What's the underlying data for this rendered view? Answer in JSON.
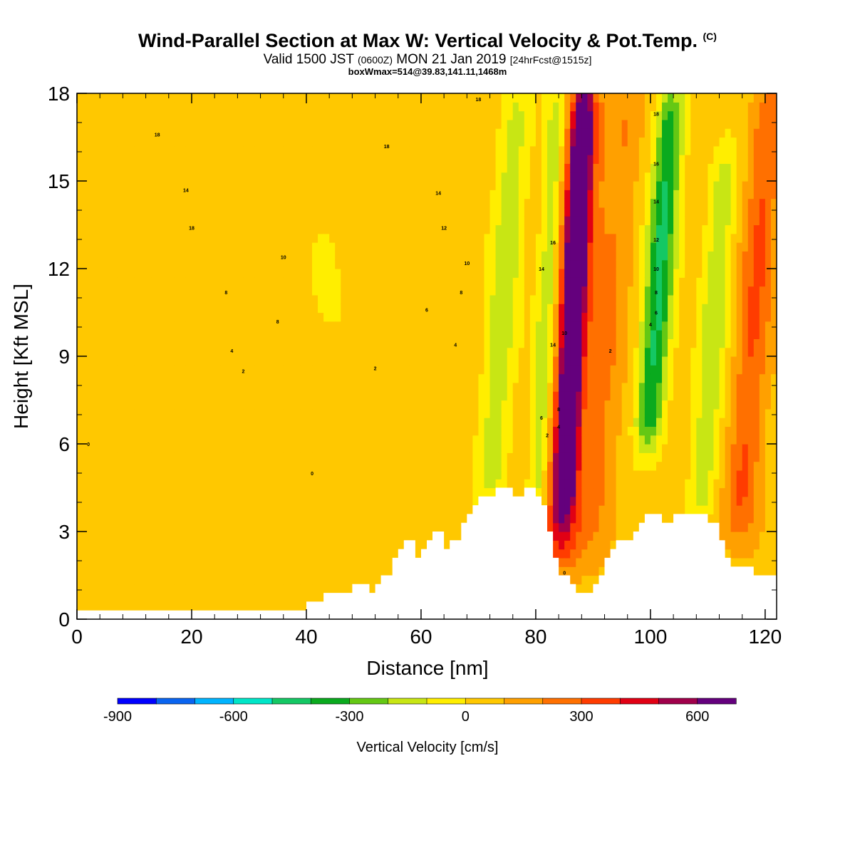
{
  "header": {
    "title": "Wind-Parallel Section at Max W: Vertical Velocity & Pot.Temp.",
    "title_tag": "(C)",
    "subtitle_main": "Valid 1500 JST",
    "subtitle_z": "(0600Z)",
    "subtitle_date": "MON 21 Jan 2019",
    "subtitle_fcst": "[24hrFcst@1515z]",
    "subtitle2": "boxWmax=514@39.83,141.11,1468m"
  },
  "chart_data": {
    "type": "heatmap",
    "xlabel": "Distance [nm]",
    "ylabel": "Height [Kft MSL]",
    "xlim": [
      0,
      122
    ],
    "ylim": [
      0,
      18
    ],
    "xticks": [
      0,
      20,
      40,
      60,
      80,
      100,
      120
    ],
    "yticks": [
      0,
      3,
      6,
      9,
      12,
      15,
      18
    ],
    "colorbar": {
      "label": "Vertical Velocity [cm/s]",
      "range": [
        -900,
        700
      ],
      "step": 100,
      "tick_values": [
        -900,
        -600,
        -300,
        0,
        300,
        600
      ],
      "tick_labels": [
        "-900",
        "-600",
        "-300",
        "0",
        "300",
        "600"
      ],
      "colors": [
        "#0000ff",
        "#0a64f0",
        "#00b4ff",
        "#00e6c8",
        "#14c864",
        "#0aaa1e",
        "#64c814",
        "#c8e614",
        "#ffee00",
        "#ffc800",
        "#ffa000",
        "#ff7000",
        "#ff3c00",
        "#e10014",
        "#a0004b",
        "#64007d"
      ]
    },
    "vertical_velocity_features": [
      {
        "x_center": 86.5,
        "x_width": 1.8,
        "z_low": 4.0,
        "z_high": 18,
        "value": 680,
        "note": "main updraft core"
      },
      {
        "x_center": 86,
        "x_width": 4.5,
        "z_low": 2.0,
        "z_high": 18,
        "value": 420,
        "note": "updraft envelope"
      },
      {
        "x_center": 82,
        "x_width": 2.5,
        "z_low": 3.0,
        "z_high": 18,
        "value": -320,
        "note": "downdraft ahead of updraft"
      },
      {
        "x_center": 74,
        "x_width": 3.5,
        "z_low": 4.0,
        "z_high": 18,
        "value": -220
      },
      {
        "x_center": 101,
        "x_width": 3.0,
        "z_low": 6.0,
        "z_high": 18,
        "value": -480
      },
      {
        "x_center": 111,
        "x_width": 3.0,
        "z_low": 3.5,
        "z_high": 16,
        "value": -240
      },
      {
        "x_center": 118,
        "x_width": 3.5,
        "z_low": 3.0,
        "z_high": 18,
        "value": 250
      },
      {
        "x_center": 93,
        "x_width": 3.5,
        "z_low": 2.5,
        "z_high": 18,
        "value": 140
      },
      {
        "x_center": 15,
        "x_width": 7.0,
        "z_low": 4.5,
        "z_high": 9.5,
        "value": -50
      },
      {
        "x_center": 43,
        "x_width": 7.0,
        "z_low": 4.0,
        "z_high": 18,
        "value": -50
      }
    ],
    "potential_temperature_labels": [
      {
        "x": 14,
        "z": 16.6,
        "text": "18"
      },
      {
        "x": 19,
        "z": 14.7,
        "text": "14"
      },
      {
        "x": 20,
        "z": 13.4,
        "text": "18"
      },
      {
        "x": 36,
        "z": 12.4,
        "text": "10"
      },
      {
        "x": 26,
        "z": 11.2,
        "text": "8"
      },
      {
        "x": 35,
        "z": 10.2,
        "text": "8"
      },
      {
        "x": 27,
        "z": 9.2,
        "text": "4"
      },
      {
        "x": 29,
        "z": 8.5,
        "text": "2"
      },
      {
        "x": 2,
        "z": 6.0,
        "text": "0"
      },
      {
        "x": 41,
        "z": 5.0,
        "text": "0"
      },
      {
        "x": 54,
        "z": 16.2,
        "text": "18"
      },
      {
        "x": 63,
        "z": 14.6,
        "text": "14"
      },
      {
        "x": 64,
        "z": 13.4,
        "text": "12"
      },
      {
        "x": 68,
        "z": 12.2,
        "text": "10"
      },
      {
        "x": 67,
        "z": 11.2,
        "text": "8"
      },
      {
        "x": 61,
        "z": 10.6,
        "text": "6"
      },
      {
        "x": 66,
        "z": 9.4,
        "text": "4"
      },
      {
        "x": 52,
        "z": 8.6,
        "text": "2"
      },
      {
        "x": 70,
        "z": 17.8,
        "text": "18"
      },
      {
        "x": 83,
        "z": 12.9,
        "text": "16"
      },
      {
        "x": 81,
        "z": 12.0,
        "text": "14"
      },
      {
        "x": 85,
        "z": 9.8,
        "text": "10"
      },
      {
        "x": 83,
        "z": 9.4,
        "text": "14"
      },
      {
        "x": 84,
        "z": 7.2,
        "text": "8"
      },
      {
        "x": 81,
        "z": 6.9,
        "text": "6"
      },
      {
        "x": 84,
        "z": 6.6,
        "text": "4"
      },
      {
        "x": 82,
        "z": 6.3,
        "text": "2"
      },
      {
        "x": 85,
        "z": 1.6,
        "text": "0"
      },
      {
        "x": 93,
        "z": 9.2,
        "text": "2"
      },
      {
        "x": 101,
        "z": 17.3,
        "text": "18"
      },
      {
        "x": 101,
        "z": 15.6,
        "text": "16"
      },
      {
        "x": 101,
        "z": 14.3,
        "text": "14"
      },
      {
        "x": 101,
        "z": 13.0,
        "text": "12"
      },
      {
        "x": 101,
        "z": 12.0,
        "text": "10"
      },
      {
        "x": 101,
        "z": 11.2,
        "text": "8"
      },
      {
        "x": 101,
        "z": 10.5,
        "text": "6"
      },
      {
        "x": 100,
        "z": 10.1,
        "text": "4"
      }
    ],
    "terrain_top_kft": [
      [
        0,
        0.3
      ],
      [
        40,
        0.3
      ],
      [
        40,
        0.6
      ],
      [
        43,
        0.6
      ],
      [
        43,
        0.9
      ],
      [
        48,
        0.9
      ],
      [
        48,
        1.2
      ],
      [
        51,
        1.2
      ],
      [
        51,
        0.9
      ],
      [
        52,
        0.9
      ],
      [
        52,
        1.2
      ],
      [
        53,
        1.2
      ],
      [
        53,
        1.5
      ],
      [
        55,
        1.5
      ],
      [
        55,
        2.1
      ],
      [
        56,
        2.1
      ],
      [
        56,
        2.4
      ],
      [
        57,
        2.4
      ],
      [
        57,
        2.7
      ],
      [
        59,
        2.7
      ],
      [
        59,
        2.1
      ],
      [
        60,
        2.1
      ],
      [
        60,
        2.4
      ],
      [
        61,
        2.4
      ],
      [
        61,
        2.7
      ],
      [
        62,
        2.7
      ],
      [
        62,
        3.0
      ],
      [
        64,
        3.0
      ],
      [
        64,
        2.4
      ],
      [
        65,
        2.4
      ],
      [
        65,
        2.7
      ],
      [
        67,
        2.7
      ],
      [
        67,
        3.3
      ],
      [
        68,
        3.3
      ],
      [
        68,
        3.6
      ],
      [
        69,
        3.6
      ],
      [
        69,
        3.9
      ],
      [
        70,
        3.9
      ],
      [
        70,
        4.2
      ],
      [
        73,
        4.2
      ],
      [
        73,
        4.5
      ],
      [
        76,
        4.5
      ],
      [
        76,
        4.2
      ],
      [
        78,
        4.2
      ],
      [
        78,
        4.5
      ],
      [
        80,
        4.5
      ],
      [
        80,
        4.2
      ],
      [
        81,
        4.2
      ],
      [
        81,
        3.9
      ],
      [
        82,
        3.9
      ],
      [
        82,
        3.0
      ],
      [
        83,
        3.0
      ],
      [
        83,
        2.1
      ],
      [
        84,
        2.1
      ],
      [
        84,
        1.5
      ],
      [
        86,
        1.5
      ],
      [
        86,
        1.2
      ],
      [
        87,
        1.2
      ],
      [
        87,
        0.9
      ],
      [
        90,
        0.9
      ],
      [
        90,
        1.2
      ],
      [
        91,
        1.2
      ],
      [
        91,
        1.5
      ],
      [
        92,
        1.5
      ],
      [
        92,
        2.1
      ],
      [
        93,
        2.1
      ],
      [
        93,
        2.4
      ],
      [
        94,
        2.4
      ],
      [
        94,
        2.7
      ],
      [
        97,
        2.7
      ],
      [
        97,
        3.0
      ],
      [
        98,
        3.0
      ],
      [
        98,
        3.3
      ],
      [
        99,
        3.3
      ],
      [
        99,
        3.6
      ],
      [
        102,
        3.6
      ],
      [
        102,
        3.3
      ],
      [
        104,
        3.3
      ],
      [
        104,
        3.6
      ],
      [
        110,
        3.6
      ],
      [
        110,
        3.3
      ],
      [
        112,
        3.3
      ],
      [
        112,
        2.7
      ],
      [
        113,
        2.7
      ],
      [
        113,
        2.1
      ],
      [
        114,
        2.1
      ],
      [
        114,
        1.8
      ],
      [
        118,
        1.8
      ],
      [
        118,
        1.5
      ],
      [
        122,
        1.5
      ]
    ]
  }
}
